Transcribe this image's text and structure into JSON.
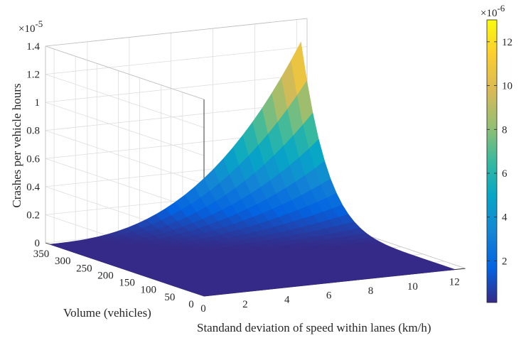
{
  "chart_data": {
    "type": "surface3d",
    "xlabel": "Standand deviation of speed within lanes (km/h)",
    "ylabel": "Volume (vehicles)",
    "zlabel": "Crashes per vehicle hours",
    "x_ticks": [
      "0",
      "2",
      "4",
      "6",
      "8",
      "10",
      "12"
    ],
    "y_ticks": [
      "0",
      "50",
      "100",
      "150",
      "200",
      "250",
      "300",
      "350"
    ],
    "z_ticks": [
      "0",
      "0.2",
      "0.4",
      "0.6",
      "0.8",
      "1",
      "1.2",
      "1.4"
    ],
    "z_exponent_base": "×10",
    "z_exponent": "-5",
    "colorbar_ticks": [
      "2",
      "4",
      "6",
      "8",
      "10",
      "12"
    ],
    "colorbar_exponent_base": "×10",
    "colorbar_exponent": "-6",
    "xlim": [
      0,
      12.5
    ],
    "ylim": [
      0,
      370
    ],
    "zlim": [
      0,
      1.4
    ],
    "colorbar_lim": [
      0.1,
      13
    ],
    "colormap": "parula",
    "grid": true,
    "series": [
      {
        "x": [
          0,
          2,
          4,
          6,
          8,
          10,
          12
        ],
        "points": [
          {
            "x": 0,
            "y": 0,
            "z": 0.0
          },
          {
            "x": 12,
            "y": 0,
            "z": 0.0
          },
          {
            "x": 0,
            "y": 360,
            "z": 0.0
          },
          {
            "x": 6,
            "y": 360,
            "z": 0.3
          },
          {
            "x": 10,
            "y": 360,
            "z": 0.7
          },
          {
            "x": 12,
            "y": 360,
            "z": 1.25
          }
        ]
      }
    ]
  }
}
